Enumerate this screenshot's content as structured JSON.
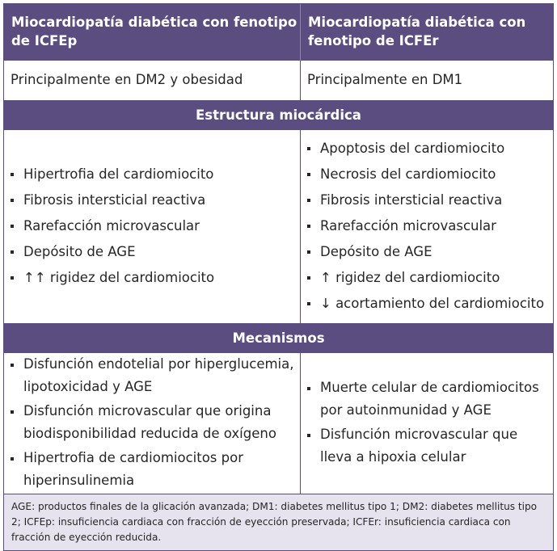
{
  "header": {
    "col1": "Miocardiopatía diabética con fenotipo de ICFEp",
    "col2": "Miocardiopatía diabética con fenotipo de ICFEr"
  },
  "principal": {
    "col1": "Principalmente en DM2 y obesidad",
    "col2": "Principalmente en DM1"
  },
  "sections": {
    "estructura": {
      "title": "Estructura miocárdica",
      "col1": [
        "Hipertrofia del cardiomiocito",
        "Fibrosis intersticial reactiva",
        "Rarefacción microvascular",
        "Depósito de AGE",
        "↑↑ rigidez del cardiomiocito"
      ],
      "col2": [
        "Apoptosis del cardiomiocito",
        "Necrosis del cardiomiocito",
        "Fibrosis intersticial reactiva",
        "Rarefacción microvascular",
        "Depósito de AGE",
        "↑ rigidez del cardiomiocito",
        "↓ acortamiento del cardiomiocito"
      ]
    },
    "mecanismos": {
      "title": "Mecanismos",
      "col1": [
        "Disfunción endotelial por hiperglucemia, lipotoxicidad y AGE",
        "Disfunción microvascular que origina biodisponibilidad reducida de oxígeno",
        "Hipertrofia de cardiomiocitos por hiperinsulinemia"
      ],
      "col2": [
        "Muerte celular de cardiomiocitos por autoinmunidad y AGE",
        "Disfunción microvascular que lleva a hipoxia celular"
      ]
    }
  },
  "footnote": "AGE: productos finales de la glicación avanzada; DM1: diabetes mellitus tipo 1; DM2: diabetes mellitus tipo 2; ICFEp: insuficiencia cardiaca con fracción de eyección preservada; ICFEr: insuficiencia cardiaca con fracción de eyección reducida."
}
